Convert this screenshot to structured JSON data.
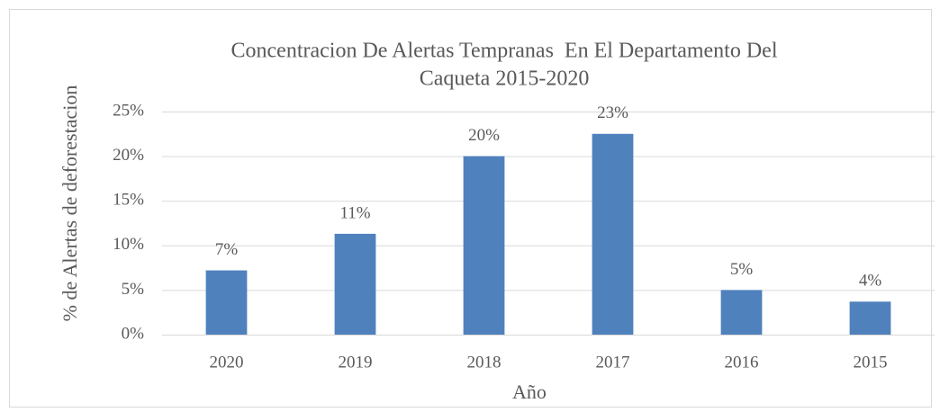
{
  "chart_data": {
    "type": "bar",
    "title": [
      "Concentracion De Alertas Tempranas  En El Departamento Del",
      "Caqueta 2015-2020"
    ],
    "x_label": "Año",
    "y_label": "% de Alertas de deforestacion",
    "categories": [
      "2020",
      "2019",
      "2018",
      "2017",
      "2016",
      "2015"
    ],
    "values": [
      7.2,
      11.3,
      20.0,
      22.5,
      5.0,
      3.7
    ],
    "value_labels": [
      "7%",
      "11%",
      "20%",
      "23%",
      "5%",
      "4%"
    ],
    "color": "#4f81bd",
    "ylim": [
      0,
      25
    ],
    "yticks": [
      {
        "value": 0,
        "label": "0%"
      },
      {
        "value": 5,
        "label": "5%"
      },
      {
        "value": 10,
        "label": "10%"
      },
      {
        "value": 15,
        "label": "15%"
      },
      {
        "value": 20,
        "label": "20%"
      },
      {
        "value": 25,
        "label": "25%"
      }
    ],
    "grid": true
  }
}
